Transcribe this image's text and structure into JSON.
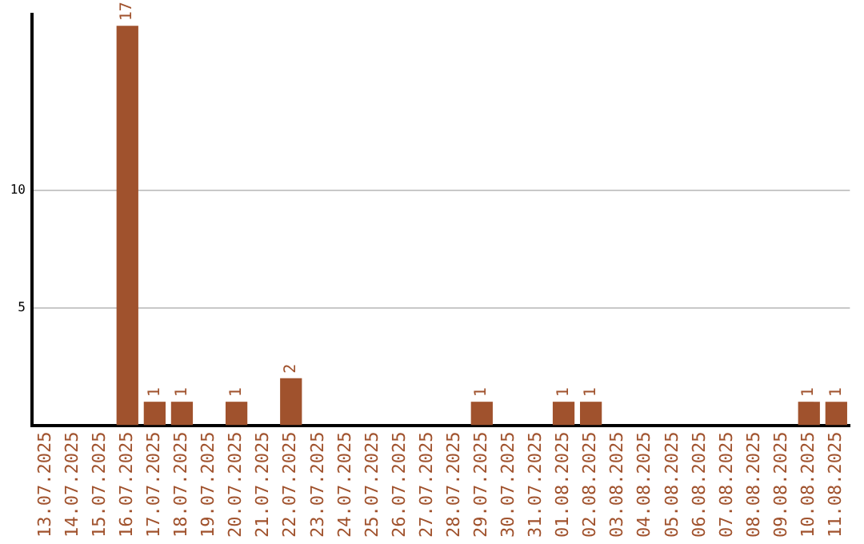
{
  "chart_data": {
    "type": "bar",
    "categories": [
      "13.07.2025",
      "14.07.2025",
      "15.07.2025",
      "16.07.2025",
      "17.07.2025",
      "18.07.2025",
      "19.07.2025",
      "20.07.2025",
      "21.07.2025",
      "22.07.2025",
      "23.07.2025",
      "24.07.2025",
      "25.07.2025",
      "26.07.2025",
      "27.07.2025",
      "28.07.2025",
      "29.07.2025",
      "30.07.2025",
      "31.07.2025",
      "01.08.2025",
      "02.08.2025",
      "03.08.2025",
      "04.08.2025",
      "05.08.2025",
      "06.08.2025",
      "07.08.2025",
      "08.08.2025",
      "09.08.2025",
      "10.08.2025",
      "11.08.2025"
    ],
    "values": [
      0,
      0,
      0,
      17,
      1,
      1,
      0,
      1,
      0,
      2,
      0,
      0,
      0,
      0,
      0,
      0,
      1,
      0,
      0,
      1,
      1,
      0,
      0,
      0,
      0,
      0,
      0,
      0,
      1,
      1
    ],
    "value_labels": [
      null,
      null,
      null,
      "17",
      "1",
      "1",
      null,
      "1",
      null,
      "2",
      null,
      null,
      null,
      null,
      null,
      null,
      "1",
      null,
      null,
      "1",
      "1",
      null,
      null,
      null,
      null,
      null,
      null,
      null,
      "1",
      "1"
    ],
    "color": "#a0522d",
    "ylim": [
      0,
      17.5
    ],
    "yticks": [
      5,
      10
    ],
    "grid": "y",
    "legend": false
  }
}
